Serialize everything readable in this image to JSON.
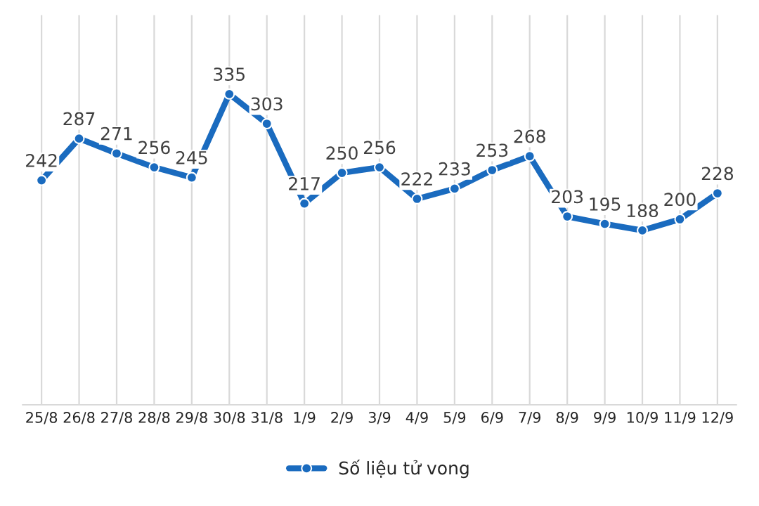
{
  "chart_data": {
    "type": "line",
    "categories": [
      "25/8",
      "26/8",
      "27/8",
      "28/8",
      "29/8",
      "30/8",
      "31/8",
      "1/9",
      "2/9",
      "3/9",
      "4/9",
      "5/9",
      "6/9",
      "7/9",
      "8/9",
      "9/9",
      "10/9",
      "11/9",
      "12/9"
    ],
    "series": [
      {
        "name": "Số liệu tử vong",
        "color": "#1a6bbf",
        "values": [
          242,
          287,
          271,
          256,
          245,
          335,
          303,
          217,
          250,
          256,
          222,
          233,
          253,
          268,
          203,
          195,
          188,
          200,
          228
        ]
      }
    ],
    "ylim": [
      0,
      420
    ],
    "data_labels": true,
    "grid": "x",
    "legend": "bottom",
    "marker": "circle",
    "line_style": "solid",
    "tick_labels": "x"
  }
}
